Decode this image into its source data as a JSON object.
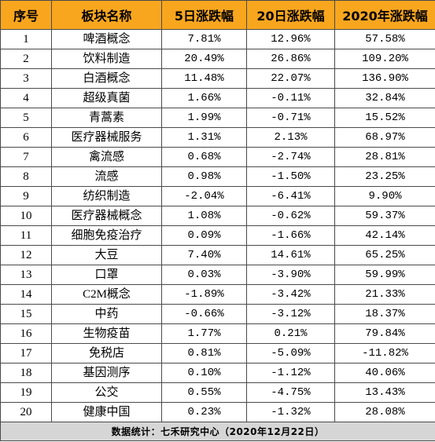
{
  "chart_data": {
    "type": "table",
    "columns": [
      "序号",
      "板块名称",
      "5日涨跌幅",
      "20日涨跌幅",
      "2020年涨跌幅"
    ],
    "rows": [
      [
        "1",
        "啤酒概念",
        "7.81%",
        "12.96%",
        "57.58%"
      ],
      [
        "2",
        "饮料制造",
        "20.49%",
        "26.86%",
        "109.20%"
      ],
      [
        "3",
        "白酒概念",
        "11.48%",
        "22.07%",
        "136.90%"
      ],
      [
        "4",
        "超级真菌",
        "1.66%",
        "-0.11%",
        "32.84%"
      ],
      [
        "5",
        "青蒿素",
        "1.99%",
        "-0.71%",
        "15.52%"
      ],
      [
        "6",
        "医疗器械服务",
        "1.31%",
        "2.13%",
        "68.97%"
      ],
      [
        "7",
        "禽流感",
        "0.68%",
        "-2.74%",
        "28.81%"
      ],
      [
        "8",
        "流感",
        "0.98%",
        "-1.50%",
        "23.25%"
      ],
      [
        "9",
        "纺织制造",
        "-2.04%",
        "-6.41%",
        "9.90%"
      ],
      [
        "10",
        "医疗器械概念",
        "1.08%",
        "-0.62%",
        "59.37%"
      ],
      [
        "11",
        "细胞免疫治疗",
        "0.09%",
        "-1.66%",
        "42.14%"
      ],
      [
        "12",
        "大豆",
        "7.40%",
        "14.61%",
        "65.25%"
      ],
      [
        "13",
        "口罩",
        "0.03%",
        "-3.90%",
        "59.99%"
      ],
      [
        "14",
        "C2M概念",
        "-1.89%",
        "-3.42%",
        "21.33%"
      ],
      [
        "15",
        "中药",
        "-0.66%",
        "-3.12%",
        "18.37%"
      ],
      [
        "16",
        "生物疫苗",
        "1.77%",
        "0.21%",
        "79.84%"
      ],
      [
        "17",
        "免税店",
        "0.81%",
        "-5.09%",
        "-11.82%"
      ],
      [
        "18",
        "基因测序",
        "0.10%",
        "-1.12%",
        "40.06%"
      ],
      [
        "19",
        "公交",
        "0.55%",
        "-4.75%",
        "13.43%"
      ],
      [
        "20",
        "健康中国",
        "0.23%",
        "-1.32%",
        "28.08%"
      ]
    ]
  },
  "footer": {
    "source": "数据统计：七禾研究中心（2020年12月22日）"
  },
  "colors": {
    "header_bg": "#F8A61E",
    "footer_bg": "#D6D6D6",
    "grid": "#4a4a4a",
    "text": "#000000"
  }
}
